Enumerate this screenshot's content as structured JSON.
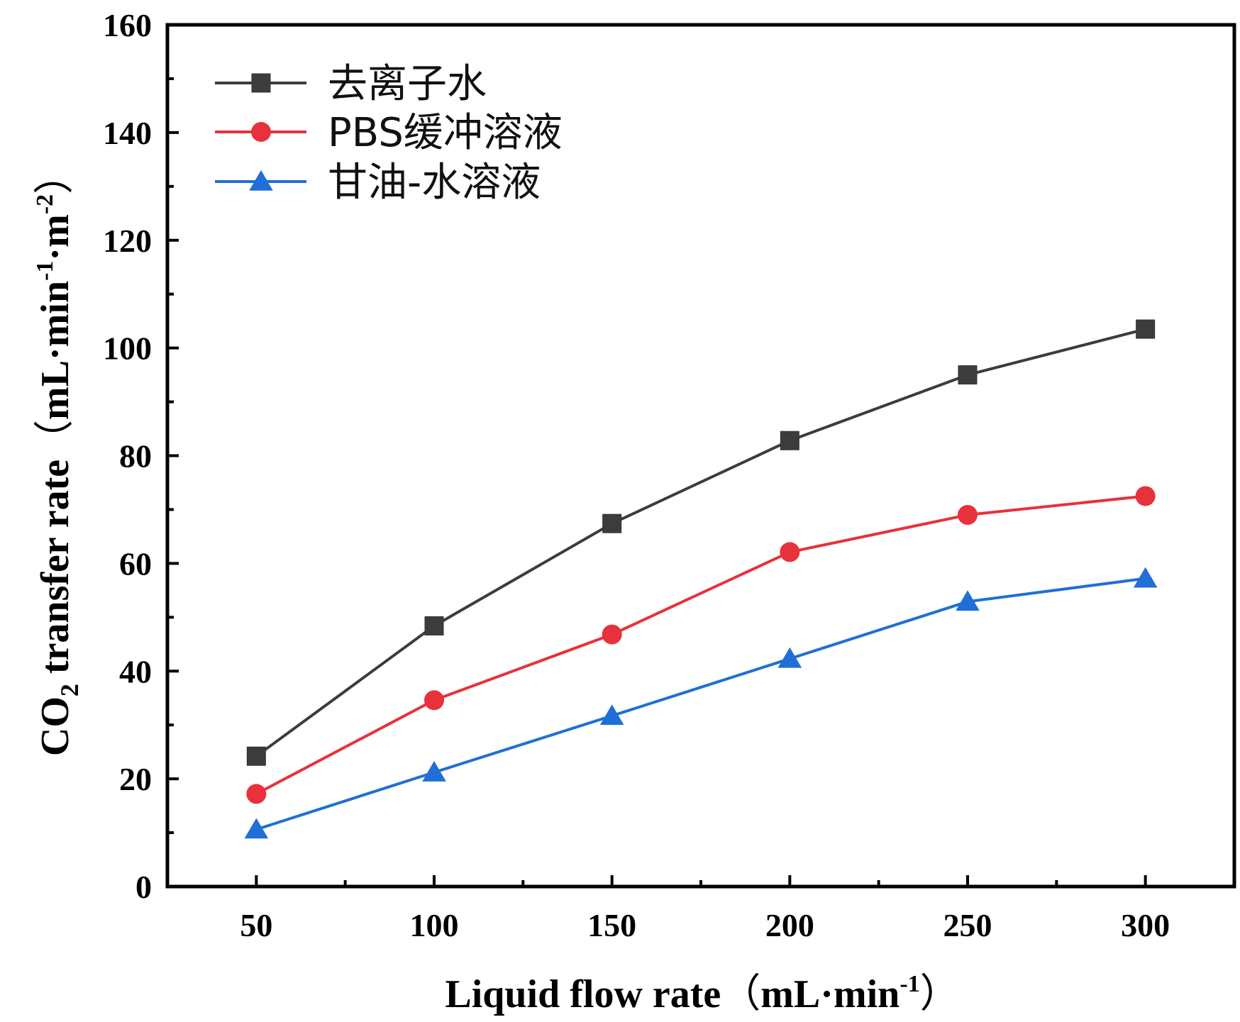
{
  "chart_data": {
    "type": "line",
    "x": [
      50,
      100,
      150,
      200,
      250,
      300
    ],
    "series": [
      {
        "name": "去离子水",
        "values": [
          24.2,
          48.4,
          67.4,
          82.8,
          95.0,
          103.5
        ],
        "color": "#3c3c3c",
        "marker": "square"
      },
      {
        "name": "PBS缓冲溶液",
        "values": [
          17.2,
          34.6,
          46.8,
          62.1,
          69.0,
          72.5
        ],
        "color": "#e8313a",
        "marker": "circle"
      },
      {
        "name": "甘油-水溶液",
        "values": [
          10.6,
          21.2,
          31.7,
          42.3,
          52.9,
          57.2
        ],
        "color": "#1f6fd6",
        "marker": "triangle"
      }
    ],
    "xlabel": "Liquid flow rate（mL·min-1 ）",
    "ylabel": "CO2 transfer rate（mL·min-1·m-2）",
    "xlim": [
      25,
      325
    ],
    "ylim": [
      0,
      160
    ],
    "xticks": [
      "50",
      "100",
      "150",
      "200",
      "250",
      "300"
    ],
    "yticks": [
      "0",
      "20",
      "40",
      "60",
      "80",
      "100",
      "120",
      "140",
      "160"
    ],
    "grid": false,
    "legend_position": "top-left"
  },
  "axes": {
    "xlabel_main": "Liquid flow rate",
    "xlabel_paren_open": "（",
    "xlabel_unit": "mL·min",
    "xlabel_exp": "-1",
    "xlabel_paren_close": "）",
    "ylabel_co": "CO",
    "ylabel_sub": "2",
    "ylabel_main": " transfer rate",
    "ylabel_paren_open": "（",
    "ylabel_unit1": "mL·min",
    "ylabel_exp1": "-1",
    "ylabel_unit2": "·m",
    "ylabel_exp2": "-2",
    "ylabel_paren_close": "）"
  }
}
